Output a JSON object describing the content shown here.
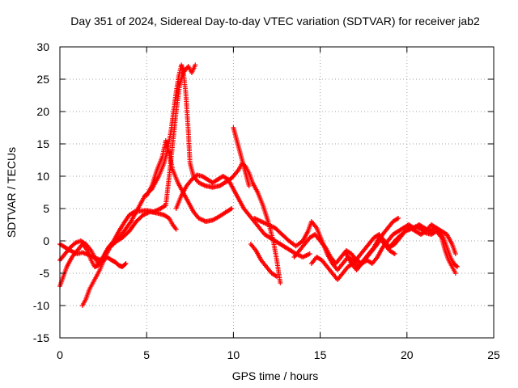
{
  "chart_data": {
    "type": "scatter",
    "title": "Day 351 of 2024, Sidereal Day-to-day VTEC variation (SDTVAR) for receiver jab2",
    "xlabel": "GPS time / hours",
    "ylabel": "SDTVAR / TECUs",
    "xlim": [
      0,
      25
    ],
    "ylim": [
      -15,
      30
    ],
    "xticks": [
      0,
      5,
      10,
      15,
      20,
      25
    ],
    "yticks": [
      -15,
      -10,
      -5,
      0,
      5,
      10,
      15,
      20,
      25,
      30
    ],
    "grid": true,
    "marker": "+",
    "marker_color": "#ff0000",
    "series": [
      {
        "name": "arc-1",
        "points": [
          [
            0.0,
            -0.5
          ],
          [
            0.3,
            -1.0
          ],
          [
            0.6,
            -1.5
          ],
          [
            1.0,
            -2.0
          ],
          [
            1.3,
            -1.8
          ],
          [
            1.7,
            -2.2
          ],
          [
            2.0,
            -2.6
          ],
          [
            2.3,
            -2.9
          ],
          [
            2.6,
            -2.5
          ],
          [
            2.8,
            -1.5
          ],
          [
            3.0,
            -0.5
          ],
          [
            3.3,
            0.0
          ],
          [
            3.6,
            0.5
          ],
          [
            4.0,
            1.5
          ],
          [
            4.4,
            3.0
          ],
          [
            4.8,
            4.0
          ],
          [
            5.2,
            4.5
          ],
          [
            5.6,
            4.3
          ],
          [
            6.0,
            4.0
          ],
          [
            6.3,
            3.5
          ],
          [
            6.5,
            2.5
          ],
          [
            6.7,
            1.8
          ]
        ]
      },
      {
        "name": "arc-2",
        "points": [
          [
            0.0,
            -3.0
          ],
          [
            0.3,
            -2.0
          ],
          [
            0.6,
            -1.0
          ],
          [
            0.9,
            -0.3
          ],
          [
            1.2,
            0.0
          ],
          [
            1.5,
            -0.5
          ],
          [
            1.8,
            -1.5
          ],
          [
            2.0,
            -2.5
          ],
          [
            2.2,
            -3.5
          ],
          [
            2.4,
            -3.0
          ],
          [
            2.6,
            -2.0
          ],
          [
            2.8,
            -1.0
          ],
          [
            3.1,
            -0.5
          ],
          [
            3.4,
            0.5
          ],
          [
            3.7,
            1.5
          ],
          [
            4.1,
            3.0
          ],
          [
            4.5,
            5.0
          ],
          [
            4.9,
            7.0
          ],
          [
            5.3,
            8.0
          ],
          [
            5.7,
            10.0
          ],
          [
            6.0,
            12.0
          ],
          [
            6.2,
            14.0
          ],
          [
            6.4,
            17.0
          ],
          [
            6.55,
            20.0
          ],
          [
            6.7,
            23.0
          ],
          [
            6.85,
            25.5
          ],
          [
            7.0,
            27.2
          ],
          [
            7.1,
            26.5
          ],
          [
            7.25,
            23.0
          ],
          [
            7.4,
            17.0
          ],
          [
            7.5,
            12.0
          ],
          [
            7.7,
            10.0
          ],
          [
            8.0,
            9.0
          ],
          [
            8.4,
            8.5
          ],
          [
            8.8,
            8.3
          ],
          [
            9.2,
            8.5
          ],
          [
            9.5,
            9.0
          ],
          [
            9.8,
            9.5
          ],
          [
            10.0,
            10.0
          ],
          [
            10.3,
            11.0
          ],
          [
            10.5,
            12.0
          ],
          [
            10.7,
            11.5
          ],
          [
            10.9,
            10.5
          ],
          [
            11.1,
            9.0
          ],
          [
            11.4,
            7.5
          ],
          [
            11.7,
            5.5
          ],
          [
            12.0,
            3.0
          ],
          [
            12.3,
            0.0
          ],
          [
            12.5,
            -3.0
          ],
          [
            12.7,
            -6.5
          ]
        ]
      },
      {
        "name": "arc-3",
        "points": [
          [
            0.0,
            -7.0
          ],
          [
            0.2,
            -5.5
          ],
          [
            0.4,
            -4.0
          ],
          [
            0.7,
            -2.5
          ],
          [
            1.0,
            -1.5
          ],
          [
            1.3,
            -0.5
          ],
          [
            1.6,
            -1.5
          ],
          [
            1.8,
            -3.0
          ],
          [
            2.0,
            -4.0
          ],
          [
            2.2,
            -3.8
          ],
          [
            2.5,
            -2.5
          ],
          [
            2.8,
            -1.0
          ],
          [
            3.1,
            0.0
          ],
          [
            3.4,
            1.5
          ],
          [
            3.7,
            2.8
          ],
          [
            4.0,
            4.0
          ],
          [
            4.3,
            4.5
          ],
          [
            4.6,
            4.6
          ],
          [
            5.0,
            4.7
          ],
          [
            5.4,
            4.5
          ],
          [
            5.8,
            5.0
          ],
          [
            6.1,
            5.5
          ],
          [
            6.3,
            10.0
          ],
          [
            6.5,
            15.0
          ],
          [
            6.7,
            20.0
          ],
          [
            6.9,
            24.0
          ],
          [
            7.1,
            26.0
          ],
          [
            7.4,
            27.0
          ],
          [
            7.6,
            26.0
          ],
          [
            7.8,
            27.2
          ]
        ]
      },
      {
        "name": "arc-4",
        "points": [
          [
            1.3,
            -10.0
          ],
          [
            1.5,
            -9.0
          ],
          [
            1.7,
            -7.5
          ],
          [
            1.9,
            -6.5
          ],
          [
            2.1,
            -5.5
          ],
          [
            2.3,
            -4.5
          ],
          [
            2.5,
            -3.2
          ],
          [
            2.7,
            -2.5
          ],
          [
            3.0,
            -3.0
          ],
          [
            3.2,
            -3.3
          ],
          [
            3.4,
            -3.8
          ],
          [
            3.6,
            -4.0
          ],
          [
            3.8,
            -3.5
          ]
        ]
      },
      {
        "name": "arc-5",
        "points": [
          [
            5.0,
            7.0
          ],
          [
            5.3,
            8.5
          ],
          [
            5.6,
            11.0
          ],
          [
            5.9,
            13.0
          ],
          [
            6.1,
            15.5
          ],
          [
            6.3,
            13.5
          ],
          [
            6.5,
            11.0
          ],
          [
            6.8,
            9.0
          ],
          [
            7.1,
            7.5
          ],
          [
            7.4,
            6.0
          ],
          [
            7.7,
            4.5
          ],
          [
            8.0,
            3.5
          ],
          [
            8.4,
            3.0
          ],
          [
            8.8,
            3.2
          ],
          [
            9.2,
            3.8
          ],
          [
            9.6,
            4.5
          ],
          [
            9.9,
            5.0
          ]
        ]
      },
      {
        "name": "arc-6",
        "points": [
          [
            6.7,
            5.0
          ],
          [
            7.0,
            7.0
          ],
          [
            7.3,
            8.5
          ],
          [
            7.6,
            9.5
          ],
          [
            7.9,
            10.2
          ],
          [
            8.2,
            10.0
          ],
          [
            8.5,
            9.5
          ],
          [
            8.8,
            9.0
          ],
          [
            9.1,
            9.5
          ],
          [
            9.4,
            10.0
          ],
          [
            9.7,
            9.5
          ],
          [
            10.0,
            8.0
          ],
          [
            10.3,
            6.5
          ],
          [
            10.6,
            5.0
          ],
          [
            10.9,
            4.0
          ],
          [
            11.2,
            3.0
          ],
          [
            11.5,
            2.0
          ],
          [
            11.8,
            1.0
          ],
          [
            12.1,
            0.5
          ],
          [
            12.4,
            0.0
          ],
          [
            12.7,
            -0.5
          ],
          [
            13.0,
            -1.0
          ],
          [
            13.3,
            -1.5
          ],
          [
            13.6,
            -2.0
          ],
          [
            14.0,
            -2.5
          ],
          [
            14.4,
            -2.0
          ]
        ]
      },
      {
        "name": "arc-7",
        "points": [
          [
            10.0,
            17.5
          ],
          [
            10.15,
            16.0
          ],
          [
            10.3,
            14.5
          ],
          [
            10.45,
            13.0
          ],
          [
            10.6,
            11.5
          ],
          [
            10.75,
            10.0
          ],
          [
            10.9,
            8.5
          ]
        ]
      },
      {
        "name": "arc-8",
        "points": [
          [
            11.0,
            -0.5
          ],
          [
            11.3,
            -1.5
          ],
          [
            11.6,
            -3.0
          ],
          [
            11.9,
            -4.0
          ],
          [
            12.2,
            -5.0
          ],
          [
            12.5,
            -5.5
          ]
        ]
      },
      {
        "name": "arc-9",
        "points": [
          [
            11.2,
            3.5
          ],
          [
            11.6,
            3.0
          ],
          [
            12.0,
            2.5
          ],
          [
            12.4,
            2.0
          ],
          [
            12.8,
            1.0
          ],
          [
            13.2,
            0.0
          ],
          [
            13.6,
            -0.8
          ],
          [
            14.0,
            0.0
          ],
          [
            14.3,
            1.5
          ],
          [
            14.5,
            3.0
          ],
          [
            14.8,
            2.0
          ],
          [
            15.1,
            0.0
          ],
          [
            15.4,
            -2.0
          ],
          [
            15.7,
            -3.5
          ],
          [
            16.0,
            -4.5
          ],
          [
            16.3,
            -3.5
          ],
          [
            16.6,
            -2.5
          ],
          [
            16.9,
            -3.0
          ],
          [
            17.2,
            -4.0
          ],
          [
            17.5,
            -3.0
          ],
          [
            17.8,
            -2.0
          ],
          [
            18.1,
            -1.0
          ],
          [
            18.4,
            0.5
          ],
          [
            18.7,
            -0.5
          ],
          [
            19.0,
            -1.5
          ],
          [
            19.3,
            -2.0
          ]
        ]
      },
      {
        "name": "arc-10",
        "points": [
          [
            13.5,
            -2.5
          ],
          [
            13.8,
            -1.5
          ],
          [
            14.1,
            -0.5
          ],
          [
            14.4,
            0.5
          ],
          [
            14.7,
            1.0
          ],
          [
            15.0,
            0.0
          ],
          [
            15.3,
            -1.0
          ],
          [
            15.6,
            -2.5
          ],
          [
            15.9,
            -3.5
          ],
          [
            16.2,
            -2.5
          ],
          [
            16.5,
            -1.5
          ],
          [
            16.8,
            -2.0
          ],
          [
            17.1,
            -3.0
          ],
          [
            17.4,
            -3.5
          ],
          [
            17.7,
            -2.5
          ],
          [
            18.0,
            -1.5
          ],
          [
            18.3,
            -0.5
          ],
          [
            18.6,
            1.0
          ],
          [
            18.9,
            2.0
          ],
          [
            19.2,
            3.0
          ],
          [
            19.5,
            3.5
          ]
        ]
      },
      {
        "name": "arc-11",
        "points": [
          [
            14.5,
            -3.5
          ],
          [
            14.8,
            -2.5
          ],
          [
            15.1,
            -3.0
          ],
          [
            15.4,
            -4.0
          ],
          [
            15.7,
            -5.0
          ],
          [
            16.0,
            -6.0
          ],
          [
            16.3,
            -5.0
          ],
          [
            16.6,
            -4.0
          ],
          [
            16.9,
            -3.5
          ],
          [
            17.2,
            -2.5
          ],
          [
            17.5,
            -1.5
          ],
          [
            17.8,
            -0.5
          ],
          [
            18.1,
            0.5
          ],
          [
            18.4,
            1.0
          ],
          [
            18.7,
            0.0
          ],
          [
            19.0,
            -1.0
          ],
          [
            19.3,
            -0.5
          ],
          [
            19.6,
            0.5
          ],
          [
            19.9,
            1.5
          ],
          [
            20.2,
            2.0
          ],
          [
            20.5,
            1.5
          ],
          [
            20.8,
            1.0
          ],
          [
            21.1,
            1.5
          ],
          [
            21.4,
            2.5
          ],
          [
            21.7,
            2.0
          ],
          [
            22.0,
            1.5
          ],
          [
            22.3,
            1.0
          ],
          [
            22.6,
            -0.5
          ],
          [
            22.8,
            -2.0
          ]
        ]
      },
      {
        "name": "arc-12",
        "points": [
          [
            16.5,
            -2.0
          ],
          [
            16.8,
            -3.5
          ],
          [
            17.1,
            -4.5
          ],
          [
            17.4,
            -3.5
          ],
          [
            17.7,
            -3.0
          ],
          [
            18.0,
            -3.5
          ],
          [
            18.3,
            -2.5
          ],
          [
            18.6,
            -1.0
          ],
          [
            18.9,
            0.0
          ],
          [
            19.2,
            1.0
          ],
          [
            19.5,
            1.5
          ],
          [
            19.8,
            2.0
          ],
          [
            20.1,
            2.5
          ],
          [
            20.4,
            2.0
          ],
          [
            20.7,
            2.5
          ],
          [
            21.0,
            2.0
          ],
          [
            21.3,
            1.5
          ],
          [
            21.6,
            2.0
          ],
          [
            21.9,
            1.5
          ],
          [
            22.1,
            0.5
          ],
          [
            22.3,
            -1.0
          ],
          [
            22.5,
            -2.5
          ],
          [
            22.7,
            -3.5
          ],
          [
            22.9,
            -4.0
          ]
        ]
      },
      {
        "name": "arc-13",
        "points": [
          [
            19.0,
            -1.0
          ],
          [
            19.3,
            0.0
          ],
          [
            19.6,
            0.8
          ],
          [
            19.9,
            1.5
          ],
          [
            20.2,
            1.8
          ],
          [
            20.5,
            2.2
          ],
          [
            20.8,
            1.8
          ],
          [
            21.1,
            1.2
          ],
          [
            21.4,
            1.0
          ],
          [
            21.7,
            1.5
          ],
          [
            22.0,
            0.5
          ],
          [
            22.2,
            -1.5
          ],
          [
            22.4,
            -3.0
          ],
          [
            22.6,
            -4.0
          ],
          [
            22.8,
            -5.0
          ]
        ]
      }
    ]
  }
}
